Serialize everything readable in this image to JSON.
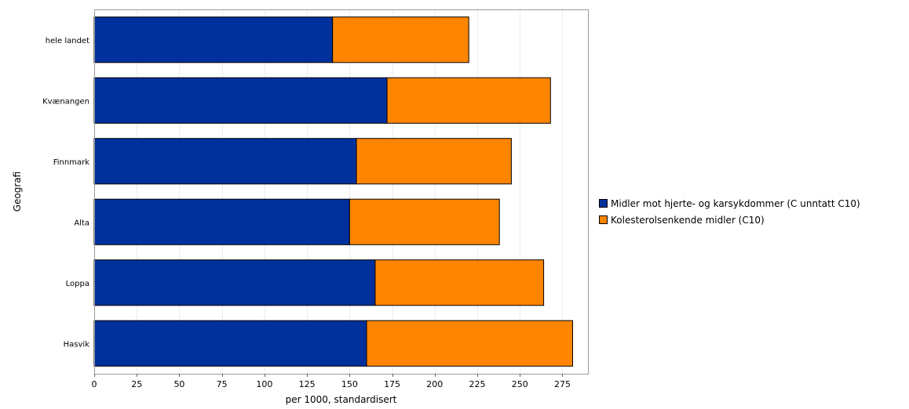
{
  "chart_data": {
    "type": "bar",
    "orientation": "horizontal",
    "stacked": true,
    "categories": [
      "hele landet",
      "Kvænangen",
      "Finnmark",
      "Alta",
      "Loppa",
      "Hasvik"
    ],
    "series": [
      {
        "name": "Midler mot hjerte- og karsykdommer (C unntatt C10)",
        "color": "#00309c",
        "values": [
          140,
          172,
          154,
          150,
          165,
          160
        ]
      },
      {
        "name": "Kolesterolsenkende midler (C10)",
        "color": "#ff8500",
        "values": [
          80,
          96,
          91,
          88,
          99,
          121
        ]
      }
    ],
    "xlabel": "per 1000, standardisert",
    "ylabel": "Geografi",
    "xlim": [
      0,
      290
    ],
    "xticks": [
      0,
      25,
      50,
      75,
      100,
      125,
      150,
      175,
      200,
      225,
      250,
      275
    ],
    "grid": true,
    "legend_position": "right"
  }
}
